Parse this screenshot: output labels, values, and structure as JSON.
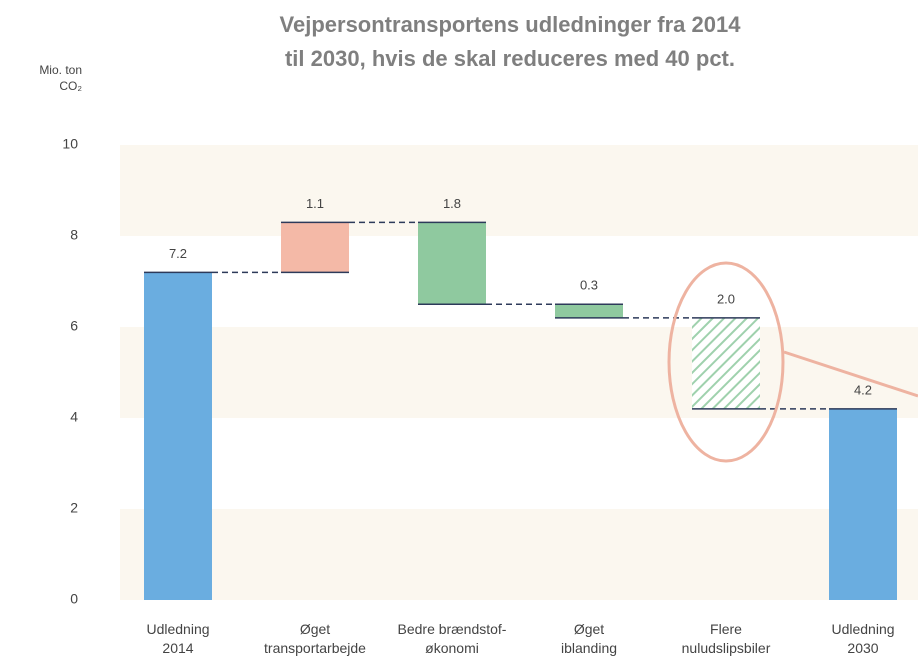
{
  "chart_data": {
    "type": "waterfall",
    "title": "Vejpersontransportens udledninger fra 2014\ntil 2030, hvis de skal reduceres med 40 pct.",
    "y_label": "Mio. ton\nCO₂",
    "categories": [
      "Udledning\n2014",
      "Øget\ntransportarbejde",
      "Bedre brændstof-\nøkonomi",
      "Øget\niblanding",
      "Flere\nnuludslipsbiler",
      "Udledning\n2030"
    ],
    "values": [
      7.2,
      1.1,
      -1.8,
      -0.3,
      -2.0,
      4.2
    ],
    "value_labels": [
      "7.2",
      "1.1",
      "1.8",
      "0.3",
      "2.0",
      "4.2"
    ],
    "totals": [
      true,
      false,
      false,
      false,
      false,
      true
    ],
    "hatched": [
      false,
      false,
      false,
      false,
      true,
      false
    ],
    "colors": [
      "#6aade0",
      "#f4b9a7",
      "#8fc99f",
      "#8fc99f",
      "#8fc99f",
      "#6aade0"
    ],
    "ylim": [
      0,
      10
    ],
    "yticks": [
      0,
      2,
      4,
      6,
      8,
      10
    ],
    "grid": true
  }
}
